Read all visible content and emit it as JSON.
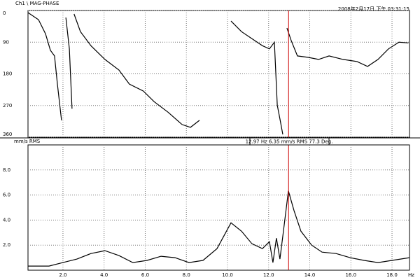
{
  "header": {
    "title": "Ch1 \\ MAG-PHASE",
    "timestamp": "2008年2月17日 下午 03:31:15"
  },
  "chart_data": [
    {
      "type": "line",
      "color": "#000000",
      "x": [
        0.3,
        0.81,
        1.15,
        1.39,
        1.59,
        1.73,
        1.93,
        null,
        2.14,
        2.31,
        2.44,
        null,
        2.54,
        2.85,
        3.36,
        4.04,
        4.72,
        5.23,
        5.91,
        6.43,
        7.11,
        7.79,
        8.2,
        8.64,
        null,
        10.17,
        10.68,
        11.19,
        11.7,
        12.04,
        12.28,
        12.42,
        12.55,
        12.69,
        null,
        12.89,
        13.1,
        13.4,
        13.91,
        14.43,
        14.94,
        15.62,
        16.3,
        16.81,
        17.32,
        17.83,
        18.34,
        18.8
      ],
      "values": [
        6,
        26,
        66,
        113,
        129,
        209,
        312,
        null,
        20,
        109,
        279,
        null,
        10,
        60,
        100,
        139,
        169,
        209,
        229,
        259,
        289,
        324,
        332,
        312,
        null,
        30,
        60,
        80,
        100,
        109,
        90,
        269,
        308,
        352,
        null,
        50,
        86,
        129,
        133,
        139,
        129,
        139,
        145,
        159,
        139,
        109,
        90,
        92
      ],
      "xlim": [
        0.3,
        18.85
      ],
      "xticks": [
        2,
        4,
        6,
        8,
        10,
        12,
        14,
        16,
        18
      ],
      "ylim": [
        0,
        360
      ],
      "yticks": [
        0,
        90,
        180,
        270,
        360
      ],
      "y_inverted": true,
      "grid": true
    },
    {
      "type": "line",
      "color": "#000000",
      "ylabel": "mm/s RMS",
      "xlabel": "Hz",
      "x": [
        0.3,
        1.32,
        2.0,
        2.68,
        3.36,
        4.04,
        4.72,
        5.4,
        6.09,
        6.77,
        7.45,
        8.13,
        8.81,
        9.49,
        10.17,
        10.68,
        11.19,
        11.7,
        12.04,
        12.21,
        12.38,
        12.55,
        12.72,
        12.96,
        13.23,
        13.57,
        14.09,
        14.6,
        15.28,
        15.96,
        16.64,
        17.32,
        18.0,
        18.85
      ],
      "values": [
        0.33,
        0.33,
        0.61,
        0.89,
        1.33,
        1.56,
        1.17,
        0.61,
        0.78,
        1.11,
        1.0,
        0.61,
        0.78,
        1.72,
        3.78,
        3.11,
        2.11,
        1.72,
        2.28,
        0.61,
        2.56,
        0.89,
        3.11,
        6.33,
        4.78,
        3.11,
        2.0,
        1.44,
        1.33,
        1.0,
        0.78,
        0.61,
        0.78,
        1.0
      ],
      "xlim": [
        0.3,
        18.85
      ],
      "xticks": [
        {
          "value": 2,
          "label": "2.0"
        },
        {
          "value": 4,
          "label": "4.0"
        },
        {
          "value": 6,
          "label": "6.0"
        },
        {
          "value": 8,
          "label": "8.0"
        },
        {
          "value": 10,
          "label": "10.0"
        },
        {
          "value": 12,
          "label": "12.0"
        },
        {
          "value": 14,
          "label": "14.0"
        },
        {
          "value": 16,
          "label": "16.0"
        },
        {
          "value": 18,
          "label": "18.0"
        }
      ],
      "ylim": [
        0,
        10
      ],
      "yticks": [
        {
          "value": 2,
          "label": "2.0"
        },
        {
          "value": 4,
          "label": "4.0"
        },
        {
          "value": 6,
          "label": "6.0"
        },
        {
          "value": 8,
          "label": "8.0"
        }
      ],
      "grid": true,
      "cursor_color": "#cc0000",
      "cursor_x": 12.97,
      "cursor_label": "12.97 Hz 6.35 mm/s RMS 77.3 Deg."
    }
  ]
}
